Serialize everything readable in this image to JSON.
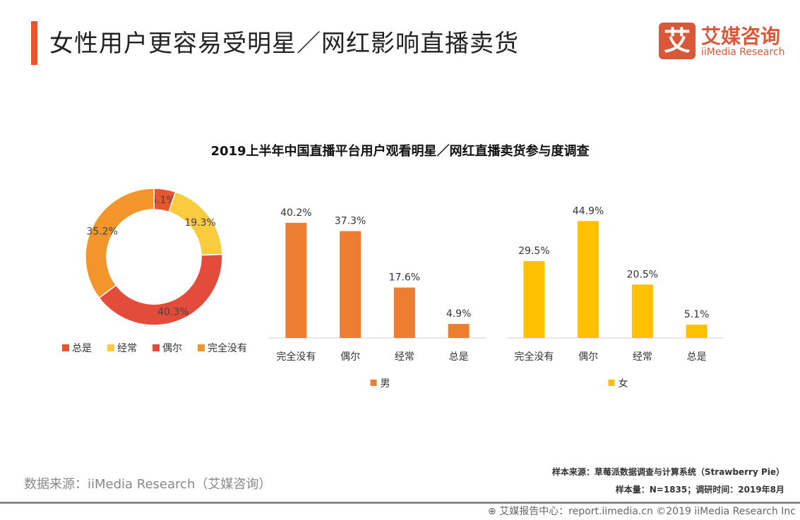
{
  "header": {
    "title": "女性用户更容易受明星／网红影响直播卖货",
    "logo_glyph": "艾",
    "logo_cn": "艾媒咨询",
    "logo_en": "iiMedia Research",
    "accent": "#E8562F"
  },
  "chart_data": [
    {
      "type": "pie",
      "variant": "donut",
      "title": "2019上半年中国直播平台用户观看明星／网红直播卖货参与度调查",
      "categories": [
        "总是",
        "经常",
        "偶尔",
        "完全没有"
      ],
      "values": [
        5.1,
        19.3,
        40.3,
        35.2
      ],
      "labels": [
        "5.1%",
        "19.3%",
        "40.3%",
        "35.2%"
      ],
      "colors": [
        "#E8562F",
        "#F9CB3F",
        "#E34B3B",
        "#F2952A"
      ],
      "legend": "bottom"
    },
    {
      "type": "bar",
      "series": [
        {
          "name": "男",
          "values": [
            40.2,
            37.3,
            17.6,
            4.9
          ],
          "labels": [
            "40.2%",
            "37.3%",
            "17.6%",
            "4.9%"
          ]
        }
      ],
      "categories": [
        "完全没有",
        "偶尔",
        "经常",
        "总是"
      ],
      "color": "#ED7D31",
      "ylim": [
        0,
        50
      ],
      "legend": "bottom"
    },
    {
      "type": "bar",
      "series": [
        {
          "name": "女",
          "values": [
            29.5,
            44.9,
            20.5,
            5.1
          ],
          "labels": [
            "29.5%",
            "44.9%",
            "20.5%",
            "5.1%"
          ]
        }
      ],
      "categories": [
        "完全没有",
        "偶尔",
        "经常",
        "总是"
      ],
      "color": "#FFC000",
      "ylim": [
        0,
        55
      ],
      "legend": "bottom"
    }
  ],
  "footer": {
    "source": "数据来源：iiMedia Research（艾媒咨询）",
    "sample_source": "样本来源：草莓派数据调查与计算系统（Strawberry Pie）",
    "sample_size": "样本量：N=1835；调研时间：2019年8月",
    "copyright": "艾媒报告中心：report.iimedia.cn ©2019 iiMedia Research Inc"
  }
}
